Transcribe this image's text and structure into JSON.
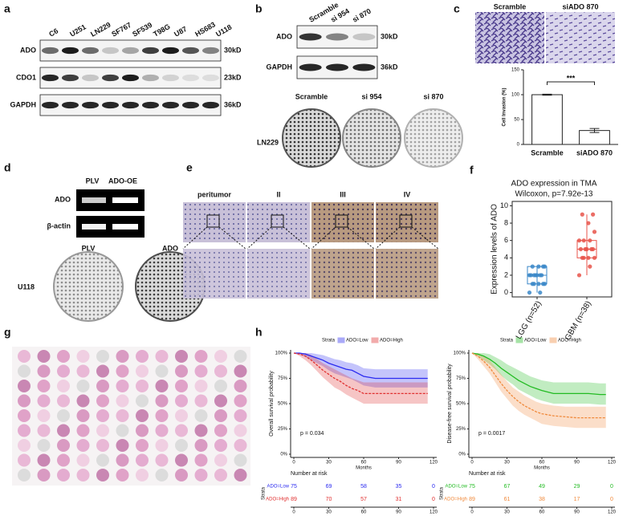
{
  "panels": {
    "a": {
      "label": "a",
      "lanes": [
        "C6",
        "U251",
        "LN229",
        "SF767",
        "SF539",
        "T98G",
        "U87",
        "HS683",
        "U118"
      ],
      "rows": [
        {
          "name": "ADO",
          "size": "30kD"
        },
        {
          "name": "CDO1",
          "size": "23kD"
        },
        {
          "name": "GAPDH",
          "size": "36kD"
        }
      ]
    },
    "b": {
      "label": "b",
      "lanes": [
        "Scramble",
        "si 954",
        "si 870"
      ],
      "rows": [
        {
          "name": "ADO",
          "size": "30kD"
        },
        {
          "name": "GAPDH",
          "size": "36kD"
        }
      ],
      "colony_labels": [
        "Scramble",
        "si 954",
        "si 870"
      ],
      "cell_line": "LN229"
    },
    "c": {
      "label": "c",
      "image_labels": [
        "Scramble",
        "siADO 870"
      ]
    },
    "d": {
      "label": "d",
      "lanes": [
        "PLV",
        "ADO-OE"
      ],
      "rows": [
        "ADO",
        "β-actin"
      ],
      "colony_labels": [
        "PLV",
        "ADO"
      ],
      "cell_line": "U118"
    },
    "e": {
      "label": "e",
      "columns": [
        "peritumor",
        "II",
        "III",
        "IV"
      ]
    },
    "f": {
      "label": "f"
    },
    "g": {
      "label": "g"
    },
    "h": {
      "label": "h"
    }
  },
  "chart_data": [
    {
      "type": "bar",
      "ylabel": "Cell Invasion (%)",
      "categories": [
        "Scramble",
        "siADO 870"
      ],
      "values": [
        100,
        28
      ],
      "errors": [
        1,
        4
      ],
      "color": "#ffffff",
      "annotation": "***",
      "ylim": [
        0,
        150
      ],
      "yticks": [
        0,
        50,
        100,
        150
      ]
    },
    {
      "type": "box",
      "title": "ADO expression in TMA",
      "subtitle": "Wilcoxon, p=7.92e-13",
      "ylabel": "Expression levels of ADO",
      "categories": [
        "LGG (n=52)",
        "GBM (n=38)"
      ],
      "colors": [
        "#3a87c8",
        "#e8534a"
      ],
      "boxes": [
        {
          "min": 0,
          "q1": 1,
          "median": 2,
          "q3": 3,
          "max": 3,
          "points": [
            0,
            0,
            1,
            1,
            1,
            1,
            1,
            2,
            2,
            2,
            2,
            2,
            2,
            2,
            3,
            3,
            3,
            3
          ]
        },
        {
          "min": 2,
          "q1": 4,
          "median": 5,
          "q3": 6,
          "max": 9,
          "points": [
            2,
            3,
            4,
            4,
            4,
            4,
            5,
            5,
            5,
            5,
            5,
            6,
            6,
            6,
            7,
            8,
            9,
            9
          ]
        }
      ],
      "ylim": [
        -0.5,
        10.5
      ],
      "yticks": [
        0,
        2,
        4,
        6,
        8,
        10
      ]
    },
    {
      "type": "km",
      "legend_title": "Strata",
      "ylabel": "Overall survival probability",
      "xlabel": "Months",
      "annotation": "p = 0.034",
      "x": [
        0,
        5,
        10,
        15,
        20,
        25,
        30,
        35,
        40,
        45,
        50,
        55,
        60,
        70,
        80,
        90,
        100,
        110,
        115
      ],
      "series": [
        {
          "name": "ADO=Low",
          "color": "#2b2bf0",
          "values": [
            100,
            100,
            99,
            97,
            95,
            93,
            90,
            88,
            86,
            84,
            83,
            80,
            77,
            75,
            75,
            75,
            75,
            75,
            75
          ],
          "lower": [
            100,
            99,
            96,
            93,
            90,
            87,
            83,
            80,
            78,
            76,
            74,
            71,
            68,
            66,
            66,
            66,
            66,
            66,
            66
          ],
          "upper": [
            100,
            100,
            100,
            100,
            99,
            98,
            96,
            94,
            93,
            91,
            90,
            88,
            85,
            84,
            84,
            84,
            84,
            84,
            84
          ]
        },
        {
          "name": "ADO=High",
          "color": "#e03030",
          "values": [
            100,
            99,
            97,
            93,
            88,
            83,
            79,
            75,
            72,
            68,
            65,
            63,
            60,
            60,
            60,
            60,
            60,
            60,
            60
          ],
          "lower": [
            100,
            97,
            93,
            88,
            82,
            76,
            71,
            66,
            63,
            59,
            56,
            53,
            50,
            50,
            50,
            50,
            50,
            50,
            50
          ],
          "upper": [
            100,
            100,
            100,
            98,
            94,
            90,
            87,
            84,
            81,
            78,
            75,
            73,
            71,
            71,
            71,
            71,
            71,
            71,
            71
          ]
        }
      ],
      "ylim": [
        0,
        100
      ],
      "yticks": [
        {
          "value": 0,
          "label": "0%"
        },
        {
          "value": 25,
          "label": "25%"
        },
        {
          "value": 50,
          "label": "50%"
        },
        {
          "value": 75,
          "label": "75%"
        },
        {
          "value": 100,
          "label": "100%"
        }
      ],
      "xlim": [
        0,
        120
      ],
      "xticks": [
        0,
        30,
        60,
        90,
        120
      ],
      "risk_table": {
        "title": "Number at risk",
        "ylabel": "Strata",
        "rows": [
          [
            75,
            69,
            58,
            35,
            0
          ],
          [
            89,
            70,
            57,
            31,
            0
          ]
        ]
      }
    },
    {
      "type": "km",
      "legend_title": "Strata",
      "ylabel": "Disease-free survival probability",
      "xlabel": "Months",
      "annotation": "p = 0.0017",
      "x": [
        0,
        5,
        10,
        15,
        20,
        25,
        30,
        35,
        40,
        45,
        50,
        55,
        60,
        70,
        80,
        90,
        100,
        110,
        115
      ],
      "series": [
        {
          "name": "ADO=Low",
          "color": "#22bb22",
          "values": [
            100,
            99,
            97,
            94,
            90,
            85,
            81,
            77,
            73,
            70,
            67,
            65,
            63,
            60,
            60,
            60,
            60,
            59,
            59
          ],
          "lower": [
            100,
            97,
            93,
            89,
            84,
            78,
            73,
            69,
            64,
            61,
            58,
            55,
            53,
            50,
            50,
            50,
            50,
            49,
            49
          ],
          "upper": [
            100,
            100,
            100,
            99,
            96,
            93,
            89,
            86,
            83,
            80,
            77,
            75,
            73,
            71,
            71,
            71,
            71,
            70,
            70
          ]
        },
        {
          "name": "ADO=High",
          "color": "#f08a3c",
          "values": [
            100,
            97,
            92,
            86,
            78,
            70,
            63,
            57,
            52,
            48,
            45,
            42,
            40,
            38,
            37,
            36,
            36,
            36,
            36
          ],
          "lower": [
            100,
            94,
            87,
            80,
            71,
            62,
            55,
            48,
            43,
            39,
            36,
            33,
            30,
            28,
            27,
            26,
            26,
            26,
            26
          ],
          "upper": [
            100,
            100,
            97,
            93,
            86,
            79,
            72,
            66,
            62,
            58,
            55,
            52,
            50,
            48,
            47,
            47,
            47,
            47,
            47
          ]
        }
      ],
      "ylim": [
        0,
        100
      ],
      "yticks": [
        {
          "value": 0,
          "label": "0%"
        },
        {
          "value": 25,
          "label": "25%"
        },
        {
          "value": 50,
          "label": "50%"
        },
        {
          "value": 75,
          "label": "75%"
        },
        {
          "value": 100,
          "label": "100%"
        }
      ],
      "xlim": [
        0,
        120
      ],
      "xticks": [
        0,
        30,
        60,
        90,
        120
      ],
      "risk_table": {
        "title": "Number at risk",
        "ylabel": "Strata",
        "rows": [
          [
            75,
            67,
            49,
            29,
            0
          ],
          [
            89,
            61,
            38,
            17,
            0
          ]
        ]
      }
    }
  ]
}
